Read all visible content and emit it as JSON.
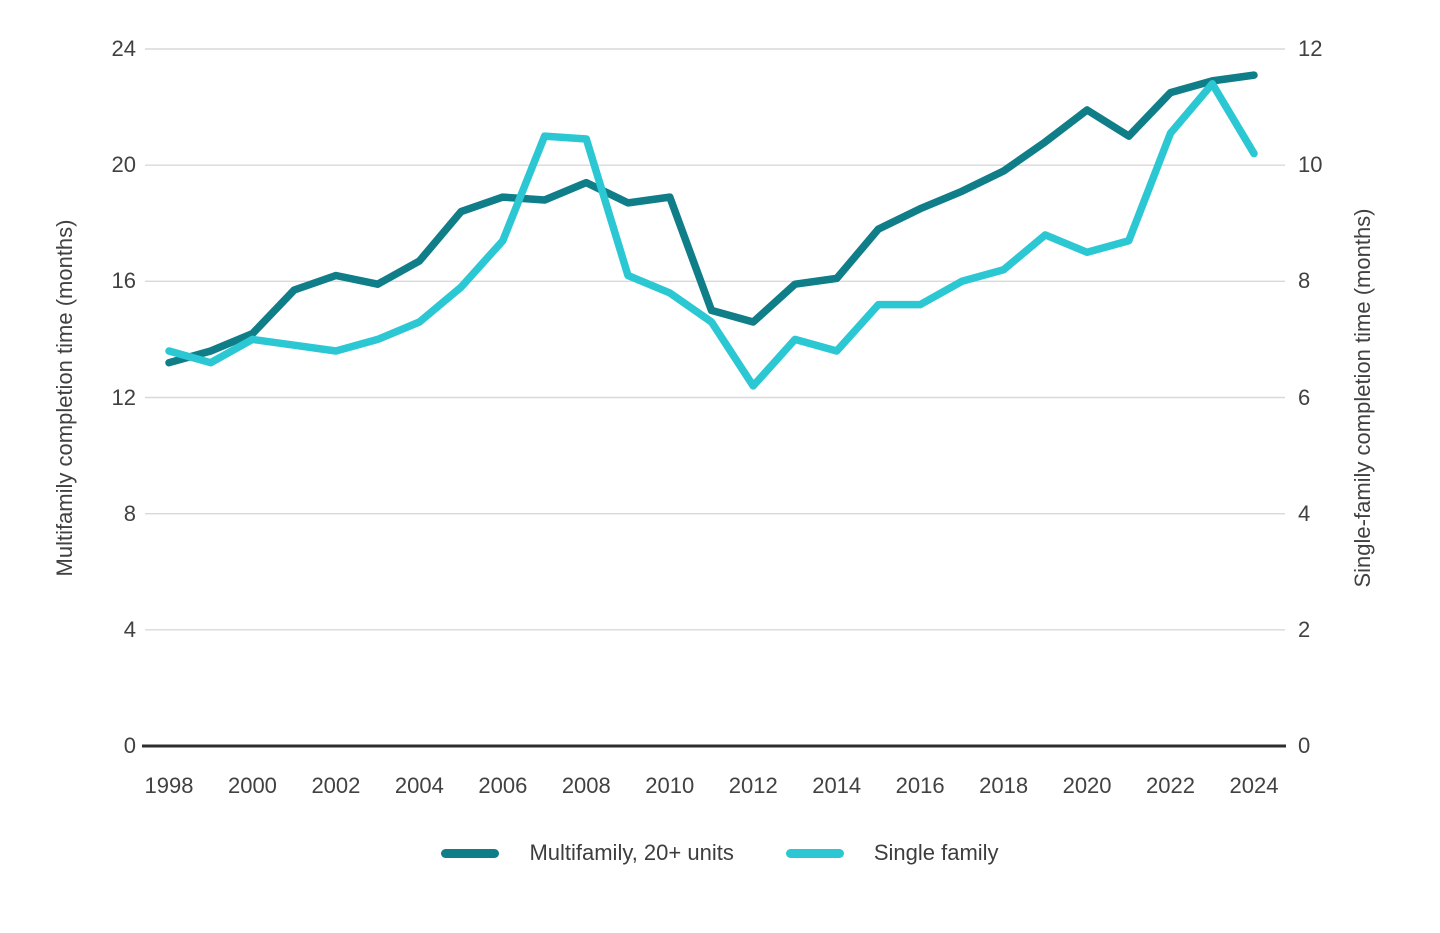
{
  "chart_data": {
    "type": "line",
    "title": "",
    "x": [
      1998,
      1999,
      2000,
      2001,
      2002,
      2003,
      2004,
      2005,
      2006,
      2007,
      2008,
      2009,
      2010,
      2011,
      2012,
      2013,
      2014,
      2015,
      2016,
      2017,
      2018,
      2019,
      2020,
      2021,
      2022,
      2023,
      2024
    ],
    "series": [
      {
        "name": "Multifamily, 20+ units",
        "axis": "left",
        "color": "#0F7E88",
        "values": [
          13.2,
          13.6,
          14.2,
          15.7,
          16.2,
          15.9,
          16.7,
          18.4,
          18.9,
          18.8,
          19.4,
          18.7,
          18.9,
          15.0,
          14.6,
          15.9,
          16.1,
          17.8,
          18.5,
          19.1,
          19.8,
          20.8,
          21.9,
          21.0,
          22.5,
          22.9,
          23.1
        ]
      },
      {
        "name": "Single family",
        "axis": "right",
        "color": "#2BC8D4",
        "values": [
          6.8,
          6.6,
          7.0,
          6.9,
          6.8,
          7.0,
          7.3,
          7.9,
          8.7,
          10.5,
          10.45,
          8.1,
          7.8,
          7.3,
          6.2,
          7.0,
          6.8,
          7.6,
          7.6,
          8.0,
          8.2,
          8.8,
          8.5,
          8.7,
          10.55,
          11.4,
          10.2
        ]
      }
    ],
    "xlabel": "",
    "ylabel_left": "Multifamily completion time (months)",
    "ylabel_right": "Single-family completion time (months)",
    "ylim_left": [
      0,
      24
    ],
    "ylim_right": [
      0,
      12
    ],
    "yticks_left": [
      0,
      4,
      8,
      12,
      16,
      20,
      24
    ],
    "yticks_right": [
      0,
      2,
      4,
      6,
      8,
      10,
      12
    ],
    "xticks": [
      1998,
      2000,
      2002,
      2004,
      2006,
      2008,
      2010,
      2012,
      2014,
      2016,
      2018,
      2020,
      2022,
      2024
    ],
    "grid": "horizontal",
    "legend_position": "bottom-center",
    "colors": {
      "background": "#ffffff",
      "gridline": "#d9d9d9",
      "axis_line": "#2e2e2e",
      "text": "#414141"
    }
  }
}
